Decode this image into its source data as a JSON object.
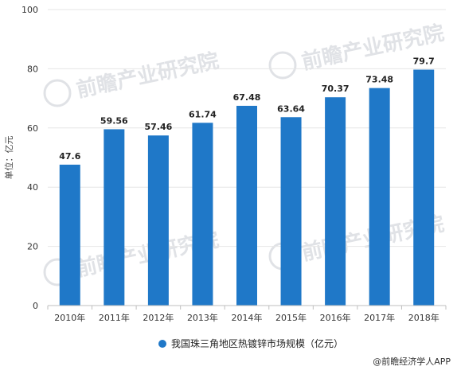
{
  "chart_data": {
    "type": "bar",
    "categories": [
      "2010年",
      "2011年",
      "2012年",
      "2013年",
      "2014年",
      "2015年",
      "2016年",
      "2017年",
      "2018年"
    ],
    "series": [
      {
        "name": "我国珠三角地区热镀锌市场规模（亿元）",
        "values": [
          47.6,
          59.56,
          57.46,
          61.74,
          67.48,
          63.64,
          70.37,
          73.48,
          79.7
        ],
        "data_labels": [
          "47.6",
          "59.56",
          "57.46",
          "61.74",
          "67.48",
          "63.64",
          "70.37",
          "73.48",
          "79.7"
        ],
        "color": "#1f78c8"
      }
    ],
    "ylabel": "单位：亿元",
    "xlabel": "",
    "ylim": [
      0,
      100
    ],
    "yticks": [
      0,
      20,
      40,
      60,
      80,
      100
    ],
    "grid": true,
    "legend_position": "bottom-center"
  },
  "source": {
    "text": "@前瞻经济学人APP"
  },
  "watermark": {
    "text": "前瞻产业研究院",
    "color": "#c8ccd2"
  }
}
